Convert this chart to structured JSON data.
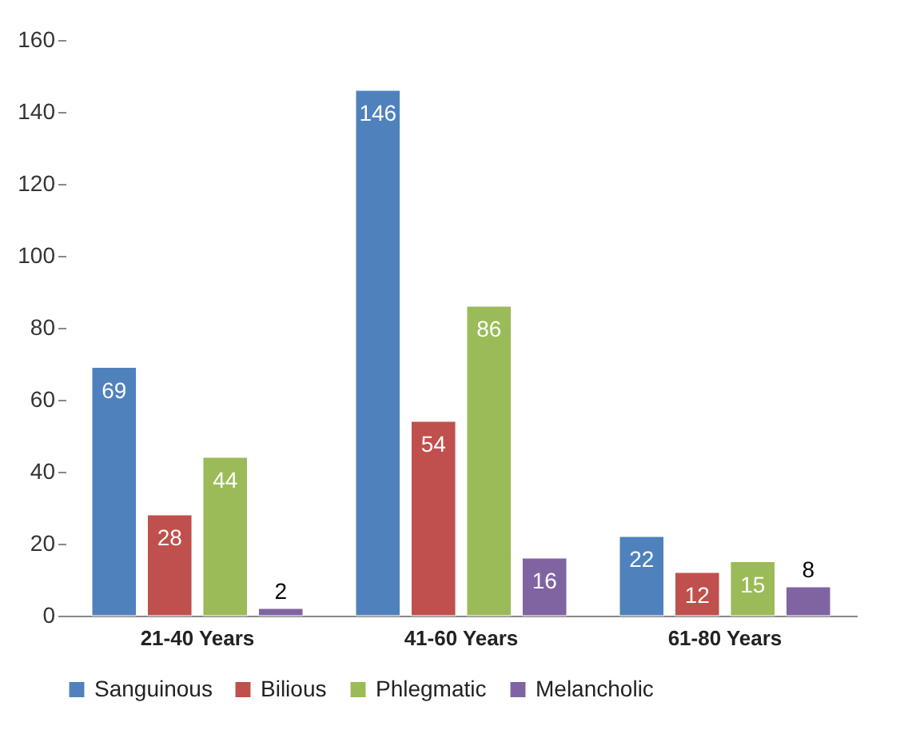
{
  "chart_data": {
    "type": "bar",
    "categories": [
      "21-40 Years",
      "41-60 Years",
      "61-80 Years"
    ],
    "series": [
      {
        "name": "Sanguinous",
        "color": "#4f81bd",
        "values": [
          69,
          146,
          22
        ]
      },
      {
        "name": "Bilious",
        "color": "#c0504d",
        "values": [
          28,
          54,
          12
        ]
      },
      {
        "name": "Phlegmatic",
        "color": "#9bbb59",
        "values": [
          44,
          86,
          15
        ]
      },
      {
        "name": "Melancholic",
        "color": "#8064a2",
        "values": [
          2,
          16,
          8
        ]
      }
    ],
    "ylim": [
      0,
      160
    ],
    "yticks": [
      0,
      20,
      40,
      60,
      80,
      100,
      120,
      140,
      160
    ],
    "grid": false,
    "legend": "bottom",
    "data_labels": true
  }
}
